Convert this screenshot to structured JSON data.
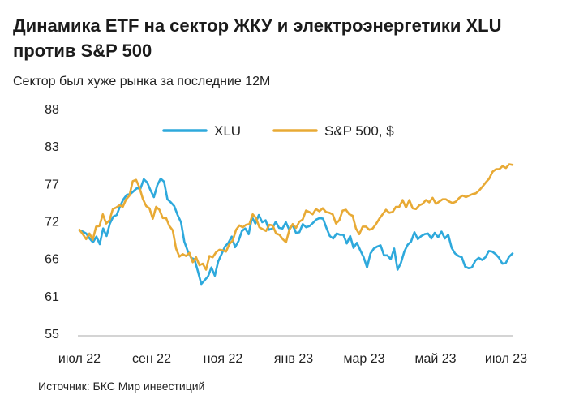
{
  "chart_data": {
    "type": "line",
    "title": "Динамика ETF на сектор ЖКУ и электроэнергетики XLU против S&P 500",
    "subtitle": "Сектор был хуже рынка за последние 12М",
    "source": "Источник: БКС Мир инвестиций",
    "yticks": [
      "88",
      "83",
      "77",
      "72",
      "66",
      "61",
      "55"
    ],
    "ylim": [
      55,
      88
    ],
    "x_tick_labels": [
      "июл 22",
      "сен 22",
      "ноя 22",
      "янв 23",
      "мар 23",
      "май 23",
      "июл 23"
    ],
    "legend": {
      "placement": "top-center"
    },
    "grid": false,
    "series": [
      {
        "name": "XLU",
        "color": "#2ea9dc",
        "values": [
          70.5,
          70.3,
          70.0,
          69.2,
          68.6,
          69.5,
          68.3,
          70.8,
          69.6,
          71.6,
          72.6,
          72.8,
          74.0,
          74.9,
          75.5,
          75.6,
          76.0,
          76.4,
          76.3,
          77.7,
          77.2,
          76.1,
          75.2,
          76.8,
          77.8,
          77.3,
          74.9,
          74.5,
          74.0,
          72.8,
          71.8,
          68.7,
          67.2,
          66.1,
          65.9,
          64.3,
          62.6,
          63.1,
          63.6,
          64.8,
          63.7,
          65.6,
          66.7,
          67.9,
          68.5,
          69.5,
          67.8,
          68.8,
          70.4,
          70.8,
          69.9,
          72.5,
          71.6,
          72.8,
          71.8,
          72.1,
          70.6,
          70.8,
          71.9,
          70.9,
          70.8,
          71.8,
          70.6,
          71.4,
          70.1,
          70.2,
          71.5,
          71.0,
          71.2,
          71.7,
          72.2,
          72.4,
          72.3,
          70.9,
          69.6,
          69.2,
          70.0,
          69.8,
          69.8,
          68.4,
          69.6,
          67.7,
          68.5,
          67.3,
          66.2,
          64.8,
          66.8,
          67.6,
          67.9,
          68.1,
          66.5,
          66.5,
          65.9,
          67.6,
          64.5,
          65.4,
          67.1,
          68.2,
          68.7,
          70.2,
          69.1,
          69.6,
          69.9,
          70.0,
          69.2,
          70.1,
          69.4,
          70.3,
          69.2,
          69.8,
          67.7,
          66.8,
          66.4,
          66.2,
          64.9,
          64.7,
          64.8,
          65.7,
          66.1,
          65.8,
          66.2,
          67.2,
          67.1,
          66.7,
          66.1,
          65.3,
          65.4,
          66.3,
          66.8
        ]
      },
      {
        "name": "S&P 500, $",
        "color": "#e8aa35",
        "values": [
          70.6,
          69.9,
          69.1,
          70.0,
          69.0,
          71.1,
          71.2,
          72.9,
          71.6,
          72.1,
          73.6,
          73.8,
          74.1,
          73.9,
          74.9,
          75.4,
          77.4,
          77.6,
          76.5,
          75.0,
          74.0,
          73.7,
          72.3,
          73.9,
          73.5,
          72.4,
          72.4,
          71.2,
          70.5,
          67.6,
          66.3,
          66.7,
          66.4,
          66.9,
          65.5,
          66.2,
          65.1,
          65.3,
          64.5,
          66.4,
          66.2,
          67.0,
          67.4,
          67.3,
          67.1,
          68.3,
          68.9,
          70.6,
          71.3,
          71.0,
          71.4,
          71.5,
          72.9,
          72.4,
          71.0,
          70.7,
          70.4,
          71.4,
          71.3,
          70.0,
          69.8,
          69.1,
          68.6,
          70.6,
          71.5,
          70.9,
          71.9,
          72.2,
          73.4,
          73.2,
          72.9,
          73.6,
          73.3,
          73.7,
          73.2,
          73.1,
          72.9,
          71.6,
          72.1,
          73.4,
          73.5,
          72.9,
          72.7,
          70.8,
          69.9,
          71.1,
          71.1,
          70.6,
          70.8,
          71.5,
          72.3,
          72.9,
          73.5,
          73.1,
          73.2,
          73.9,
          73.9,
          74.8,
          73.8,
          74.8,
          73.7,
          73.6,
          74.1,
          74.3,
          74.8,
          74.5,
          75.1,
          74.3,
          74.6,
          74.9,
          74.9,
          74.6,
          74.4,
          74.6,
          75.1,
          75.4,
          75.2,
          75.4,
          75.6,
          75.7,
          76.1,
          76.6,
          77.2,
          77.8,
          78.9,
          79.3,
          79.3,
          79.8,
          79.5,
          80.1,
          80.0
        ]
      }
    ]
  }
}
